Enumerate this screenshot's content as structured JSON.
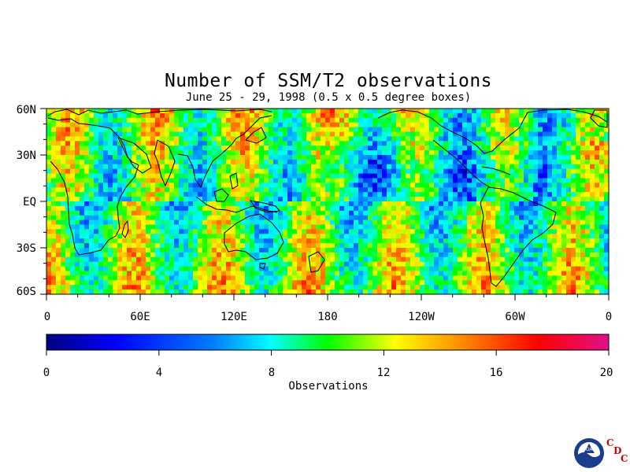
{
  "title": "Number of SSM/T2 observations",
  "subtitle": "June 25 - 29, 1998 (0.5 x 0.5 degree boxes)",
  "lat_labels": [
    "60N",
    "30N",
    "EQ",
    "30S",
    "60S"
  ],
  "lon_labels": [
    "0",
    "60E",
    "120E",
    "180",
    "120W",
    "60W",
    "0"
  ],
  "colorbar": {
    "ticks": [
      "0",
      "4",
      "8",
      "12",
      "16",
      "20"
    ],
    "label": "Observations",
    "range": [
      0,
      20
    ],
    "colors": [
      "#000080",
      "#0000ff",
      "#0080ff",
      "#00ffff",
      "#00ff00",
      "#ffff00",
      "#ff8000",
      "#ff0000",
      "#e0108a"
    ]
  },
  "chart_data": {
    "type": "heatmap",
    "title": "Number of SSM/T2 observations",
    "subtitle": "June 25 - 29, 1998 (0.5 x 0.5 degree boxes)",
    "xlabel": "",
    "ylabel": "",
    "x_range": [
      0,
      360
    ],
    "y_range": [
      -60,
      60
    ],
    "colorbar_range": [
      0,
      20
    ],
    "colorbar_label": "Observations",
    "grid": false
  },
  "logo": {
    "text": "NOAA",
    "letters": [
      "C",
      "D",
      "C"
    ]
  }
}
